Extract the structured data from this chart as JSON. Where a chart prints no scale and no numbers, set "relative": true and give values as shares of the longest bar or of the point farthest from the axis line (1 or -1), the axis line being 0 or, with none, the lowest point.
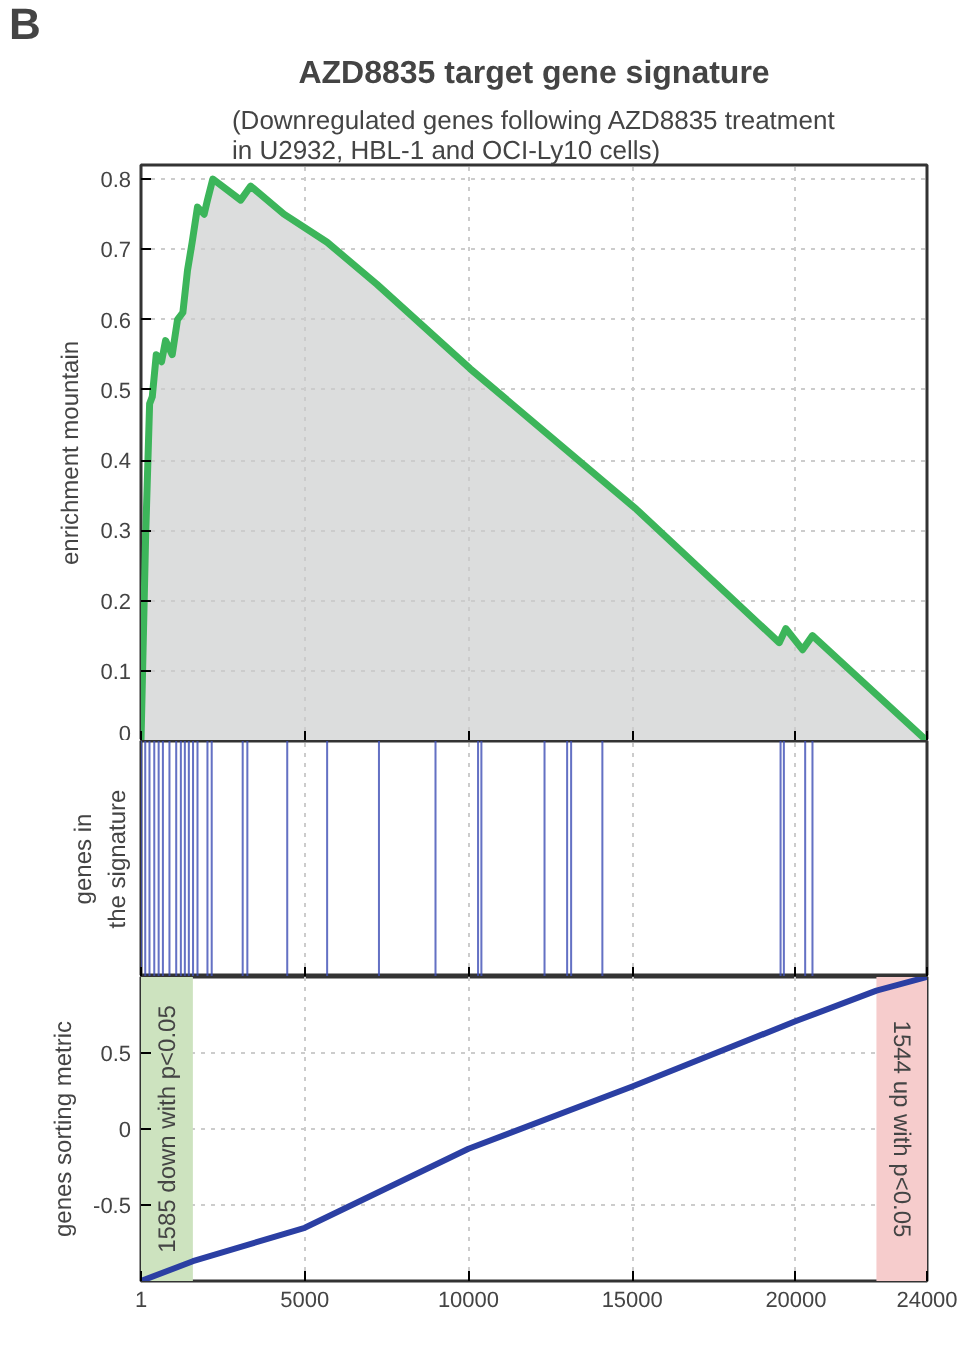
{
  "chart_data": [
    {
      "type": "area",
      "title": "AZD8835 target gene signature",
      "subtitle": "(Downregulated genes following AZD8835 treatment\nin U2932, HBL-1 and OCI-Ly10 cells)",
      "annotations": [
        "B"
      ],
      "ylabel": "enrichment mountain",
      "x": [
        1,
        142,
        264,
        345,
        467,
        629,
        751,
        954,
        1117,
        1279,
        1421,
        1563,
        1726,
        1929,
        2030,
        2193,
        3045,
        3350,
        4365,
        5684,
        7207,
        10049,
        15124,
        19488,
        19691,
        20199,
        20503,
        24000
      ],
      "series": [
        {
          "color": "#3cb55a",
          "values": [
            0,
            0.29,
            0.48,
            0.49,
            0.55,
            0.54,
            0.57,
            0.55,
            0.6,
            0.61,
            0.67,
            0.71,
            0.76,
            0.75,
            0.77,
            0.8,
            0.77,
            0.79,
            0.75,
            0.71,
            0.65,
            0.53,
            0.33,
            0.14,
            0.16,
            0.13,
            0.15,
            0
          ]
        }
      ],
      "xlim": [
        1,
        24000
      ],
      "xticks": [
        1,
        5000,
        10000,
        15000,
        20000,
        24000
      ],
      "ylim": [
        0,
        0.82
      ],
      "yticks": [
        0,
        0.1,
        0.2,
        0.3,
        0.4,
        0.5,
        0.6,
        0.7,
        0.8
      ],
      "tick_labels": "y",
      "grid": true,
      "line_style": "solid",
      "marker": "none"
    },
    {
      "type": "bar",
      "ylabel": "genes in\nthe signature",
      "relative": true,
      "x": [
        1,
        130,
        260,
        406,
        540,
        670,
        870,
        1076,
        1218,
        1340,
        1462,
        1590,
        1726,
        2030,
        2160,
        3106,
        3248,
        4466,
        5684,
        7267,
        8993,
        10292,
        10394,
        12322,
        13012,
        13134,
        14088,
        19529,
        19630,
        20280,
        20503
      ],
      "series": [
        {
          "color": "#3f4fb5",
          "values": [
            1,
            1,
            1,
            1,
            1,
            1,
            1,
            1,
            1,
            1,
            1,
            1,
            1,
            1,
            1,
            1,
            1,
            1,
            1,
            1,
            1,
            1,
            1,
            1,
            1,
            1,
            1,
            1,
            1,
            1,
            1
          ]
        }
      ],
      "xlim": [
        1,
        24000
      ],
      "xticks": [
        1,
        5000,
        10000,
        15000,
        20000,
        24000
      ],
      "tick_labels": false,
      "grid": "x"
    },
    {
      "type": "line",
      "ylabel": "genes sorting metric",
      "x": [
        1,
        1585,
        5000,
        10000,
        15000,
        20000,
        22456,
        24000
      ],
      "series": [
        {
          "color": "#2b3fa3",
          "values": [
            -1,
            -0.87,
            -0.65,
            -0.13,
            0.28,
            0.71,
            0.91,
            1
          ]
        }
      ],
      "xlim": [
        1,
        24000
      ],
      "xticks": [
        1,
        5000,
        10000,
        15000,
        20000,
        24000
      ],
      "ylim": [
        -1,
        1
      ],
      "yticks": [
        -0.5,
        0,
        0.5
      ],
      "grid": true,
      "line_style": "solid",
      "marker": "none",
      "bands": [
        {
          "axis": "x",
          "from": 1,
          "to": 1585,
          "label": "1585 down with p<0.05",
          "color": "#cde3bf"
        },
        {
          "axis": "x",
          "from": 22456,
          "to": 24000,
          "label": "1544 up with p<0.05",
          "color": "#f6cccc"
        }
      ]
    }
  ]
}
